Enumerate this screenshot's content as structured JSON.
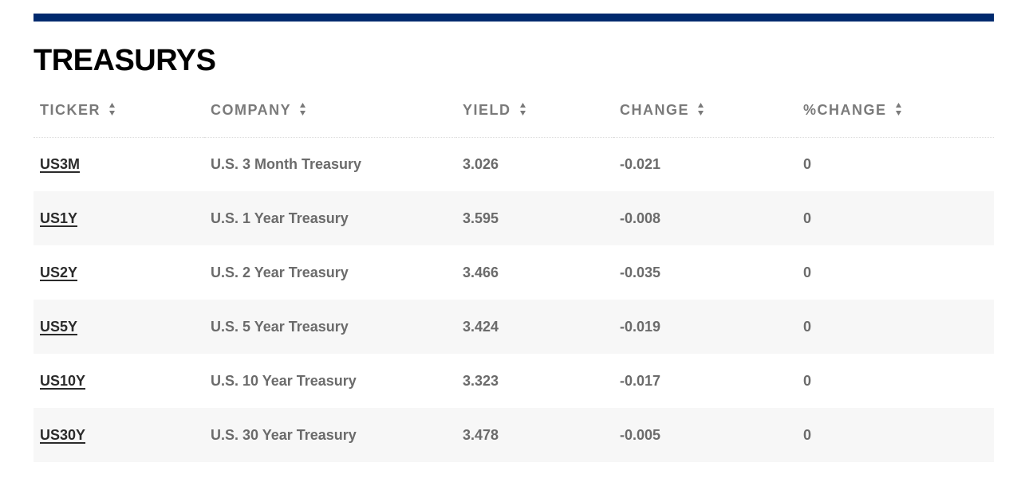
{
  "section": {
    "title": "TREASURYS"
  },
  "table": {
    "columns": [
      {
        "label": "TICKER"
      },
      {
        "label": "COMPANY"
      },
      {
        "label": "YIELD"
      },
      {
        "label": "CHANGE"
      },
      {
        "label": "%CHANGE"
      }
    ],
    "rows": [
      {
        "ticker": "US3M",
        "company": "U.S. 3 Month Treasury",
        "yield": "3.026",
        "change": "-0.021",
        "pct_change": "0"
      },
      {
        "ticker": "US1Y",
        "company": "U.S. 1 Year Treasury",
        "yield": "3.595",
        "change": "-0.008",
        "pct_change": "0"
      },
      {
        "ticker": "US2Y",
        "company": "U.S. 2 Year Treasury",
        "yield": "3.466",
        "change": "-0.035",
        "pct_change": "0"
      },
      {
        "ticker": "US5Y",
        "company": "U.S. 5 Year Treasury",
        "yield": "3.424",
        "change": "-0.019",
        "pct_change": "0"
      },
      {
        "ticker": "US10Y",
        "company": "U.S. 10 Year Treasury",
        "yield": "3.323",
        "change": "-0.017",
        "pct_change": "0"
      },
      {
        "ticker": "US30Y",
        "company": "U.S. 30 Year Treasury",
        "yield": "3.478",
        "change": "-0.005",
        "pct_change": "0"
      }
    ]
  },
  "colors": {
    "top_bar": "#002a6e",
    "header_text": "#7a7a7a",
    "cell_text": "#6b6b6b",
    "link_text": "#2b2b2b",
    "stripe": "#f7f7f7"
  },
  "icons": {
    "sort": "sort-updown-icon"
  }
}
